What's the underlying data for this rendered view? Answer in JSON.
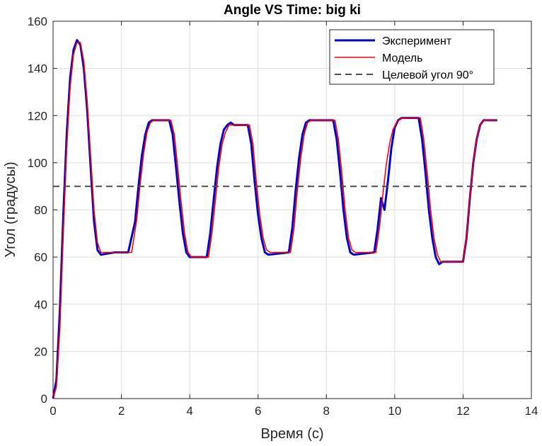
{
  "chart_data": {
    "type": "line",
    "title": "Angle VS Time: big ki",
    "xlabel": "Время (с)",
    "ylabel": "Угол (градусы)",
    "xlim": [
      0,
      14
    ],
    "ylim": [
      0,
      160
    ],
    "xticks": [
      0,
      2,
      4,
      6,
      8,
      10,
      12,
      14
    ],
    "yticks": [
      0,
      20,
      40,
      60,
      80,
      100,
      120,
      140,
      160
    ],
    "grid": true,
    "legend_position": "top-right",
    "series": [
      {
        "name": "Эксперимент",
        "color": "#0000CC",
        "style": "solid",
        "points": [
          [
            0.0,
            0
          ],
          [
            0.1,
            8
          ],
          [
            0.2,
            38
          ],
          [
            0.3,
            78
          ],
          [
            0.4,
            112
          ],
          [
            0.5,
            136
          ],
          [
            0.6,
            148
          ],
          [
            0.7,
            152
          ],
          [
            0.8,
            150
          ],
          [
            0.9,
            140
          ],
          [
            1.0,
            122
          ],
          [
            1.1,
            98
          ],
          [
            1.2,
            75
          ],
          [
            1.3,
            63
          ],
          [
            1.4,
            61
          ],
          [
            1.6,
            61.5
          ],
          [
            1.8,
            62
          ],
          [
            2.2,
            62
          ],
          [
            2.4,
            75
          ],
          [
            2.5,
            90
          ],
          [
            2.6,
            103
          ],
          [
            2.7,
            112
          ],
          [
            2.8,
            117
          ],
          [
            2.9,
            118
          ],
          [
            3.4,
            118
          ],
          [
            3.5,
            112
          ],
          [
            3.6,
            98
          ],
          [
            3.7,
            83
          ],
          [
            3.8,
            70
          ],
          [
            3.9,
            62
          ],
          [
            4.0,
            60
          ],
          [
            4.5,
            60
          ],
          [
            4.6,
            70
          ],
          [
            4.7,
            84
          ],
          [
            4.8,
            98
          ],
          [
            4.9,
            108
          ],
          [
            5.0,
            114
          ],
          [
            5.1,
            116
          ],
          [
            5.2,
            117
          ],
          [
            5.3,
            116
          ],
          [
            5.7,
            116
          ],
          [
            5.8,
            108
          ],
          [
            5.9,
            92
          ],
          [
            6.0,
            78
          ],
          [
            6.1,
            68
          ],
          [
            6.2,
            62
          ],
          [
            6.3,
            61
          ],
          [
            6.9,
            62
          ],
          [
            7.0,
            72
          ],
          [
            7.1,
            88
          ],
          [
            7.2,
            102
          ],
          [
            7.3,
            112
          ],
          [
            7.4,
            117
          ],
          [
            7.5,
            118
          ],
          [
            8.2,
            118
          ],
          [
            8.3,
            110
          ],
          [
            8.4,
            96
          ],
          [
            8.5,
            80
          ],
          [
            8.6,
            68
          ],
          [
            8.7,
            62
          ],
          [
            8.8,
            61
          ],
          [
            9.4,
            62
          ],
          [
            9.5,
            72
          ],
          [
            9.6,
            85
          ],
          [
            9.7,
            80
          ],
          [
            9.8,
            92
          ],
          [
            9.9,
            106
          ],
          [
            10.0,
            115
          ],
          [
            10.1,
            118
          ],
          [
            10.2,
            119
          ],
          [
            10.7,
            119
          ],
          [
            10.8,
            110
          ],
          [
            10.9,
            96
          ],
          [
            11.0,
            80
          ],
          [
            11.1,
            68
          ],
          [
            11.2,
            60
          ],
          [
            11.3,
            57
          ],
          [
            11.4,
            58
          ],
          [
            12.0,
            58
          ],
          [
            12.1,
            68
          ],
          [
            12.2,
            85
          ],
          [
            12.3,
            100
          ],
          [
            12.4,
            110
          ],
          [
            12.5,
            116
          ],
          [
            12.6,
            118
          ],
          [
            13.0,
            118
          ]
        ]
      },
      {
        "name": "Модель",
        "color": "#FF0000",
        "style": "solid",
        "points": [
          [
            0.0,
            0
          ],
          [
            0.1,
            5
          ],
          [
            0.2,
            30
          ],
          [
            0.3,
            70
          ],
          [
            0.4,
            106
          ],
          [
            0.5,
            132
          ],
          [
            0.6,
            146
          ],
          [
            0.7,
            151
          ],
          [
            0.8,
            151
          ],
          [
            0.9,
            143
          ],
          [
            1.0,
            126
          ],
          [
            1.1,
            103
          ],
          [
            1.2,
            80
          ],
          [
            1.3,
            66
          ],
          [
            1.4,
            62
          ],
          [
            2.3,
            62
          ],
          [
            2.45,
            76
          ],
          [
            2.55,
            91
          ],
          [
            2.65,
            104
          ],
          [
            2.75,
            113
          ],
          [
            2.85,
            117
          ],
          [
            2.95,
            118
          ],
          [
            3.45,
            118
          ],
          [
            3.55,
            112
          ],
          [
            3.65,
            98
          ],
          [
            3.75,
            83
          ],
          [
            3.85,
            70
          ],
          [
            3.95,
            62
          ],
          [
            4.05,
            60
          ],
          [
            4.55,
            60
          ],
          [
            4.65,
            70
          ],
          [
            4.75,
            84
          ],
          [
            4.85,
            98
          ],
          [
            4.95,
            108
          ],
          [
            5.05,
            113
          ],
          [
            5.15,
            116
          ],
          [
            5.75,
            116
          ],
          [
            5.85,
            108
          ],
          [
            5.95,
            92
          ],
          [
            6.05,
            78
          ],
          [
            6.15,
            68
          ],
          [
            6.25,
            63
          ],
          [
            6.35,
            62
          ],
          [
            6.95,
            62
          ],
          [
            7.05,
            72
          ],
          [
            7.15,
            88
          ],
          [
            7.25,
            102
          ],
          [
            7.35,
            112
          ],
          [
            7.45,
            117
          ],
          [
            7.55,
            118
          ],
          [
            8.25,
            118
          ],
          [
            8.35,
            110
          ],
          [
            8.45,
            96
          ],
          [
            8.55,
            80
          ],
          [
            8.65,
            68
          ],
          [
            8.75,
            63
          ],
          [
            8.85,
            62
          ],
          [
            9.45,
            62
          ],
          [
            9.55,
            72
          ],
          [
            9.65,
            86
          ],
          [
            9.75,
            99
          ],
          [
            9.85,
            108
          ],
          [
            9.95,
            114
          ],
          [
            10.05,
            117
          ],
          [
            10.2,
            119
          ],
          [
            10.75,
            119
          ],
          [
            10.85,
            110
          ],
          [
            10.95,
            96
          ],
          [
            11.05,
            80
          ],
          [
            11.15,
            68
          ],
          [
            11.25,
            61
          ],
          [
            11.35,
            58
          ],
          [
            12.0,
            58
          ],
          [
            12.1,
            68
          ],
          [
            12.2,
            85
          ],
          [
            12.3,
            100
          ],
          [
            12.4,
            110
          ],
          [
            12.5,
            116
          ],
          [
            12.6,
            118
          ],
          [
            13.0,
            118
          ]
        ]
      },
      {
        "name": "Целевой угол 90°",
        "color": "#4D4D4D",
        "style": "dashed",
        "points": [
          [
            0,
            90
          ],
          [
            14,
            90
          ]
        ]
      }
    ]
  }
}
